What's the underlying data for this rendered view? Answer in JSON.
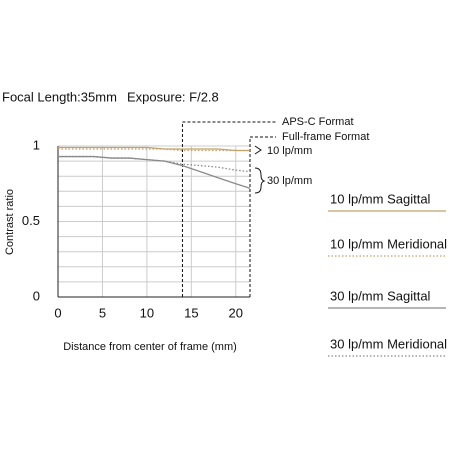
{
  "chart_data": {
    "type": "line",
    "header": [
      "Focal Length:35mm",
      "Exposure: F/2.8"
    ],
    "x_label": "Distance from center of frame (mm)",
    "y_label": "Contrast ratio",
    "x": [
      0,
      2,
      4,
      6,
      8,
      10,
      12,
      14,
      16,
      18,
      20,
      21.6
    ],
    "series": [
      {
        "name": "10 lp/mm Sagittal",
        "color": "#c4a06a",
        "dash": "solid",
        "values": [
          0.99,
          0.99,
          0.99,
          0.99,
          0.99,
          0.99,
          0.98,
          0.98,
          0.98,
          0.98,
          0.97,
          0.97
        ]
      },
      {
        "name": "10 lp/mm Meridional",
        "color": "#c4a06a",
        "dash": "dotted",
        "values": [
          0.98,
          0.98,
          0.98,
          0.98,
          0.98,
          0.98,
          0.98,
          0.97,
          0.97,
          0.97,
          0.97,
          0.97
        ]
      },
      {
        "name": "30 lp/mm Sagittal",
        "color": "#8a8a8a",
        "dash": "solid",
        "values": [
          0.93,
          0.93,
          0.93,
          0.92,
          0.92,
          0.91,
          0.9,
          0.87,
          0.83,
          0.79,
          0.75,
          0.72
        ]
      },
      {
        "name": "30 lp/mm Meridional",
        "color": "#8a8a8a",
        "dash": "dotted",
        "values": [
          0.93,
          0.93,
          0.93,
          0.92,
          0.92,
          0.91,
          0.9,
          0.88,
          0.87,
          0.86,
          0.84,
          0.83
        ]
      }
    ],
    "xlim": [
      0,
      21.6
    ],
    "xticks": [
      0,
      5,
      10,
      15,
      20
    ],
    "ylim": [
      0,
      1
    ],
    "yticks": [
      0,
      0.5,
      1
    ],
    "ygrid": [
      0.1,
      0.2,
      0.3,
      0.4,
      0.5,
      0.6,
      0.7,
      0.8,
      0.9,
      1
    ],
    "grid": true,
    "format_lines": [
      {
        "label": "APS-C Format",
        "x": 14
      },
      {
        "label": "Full-frame Format",
        "x": 21.6
      }
    ],
    "annotations": [
      "10 lp/mm",
      "30 lp/mm"
    ]
  }
}
